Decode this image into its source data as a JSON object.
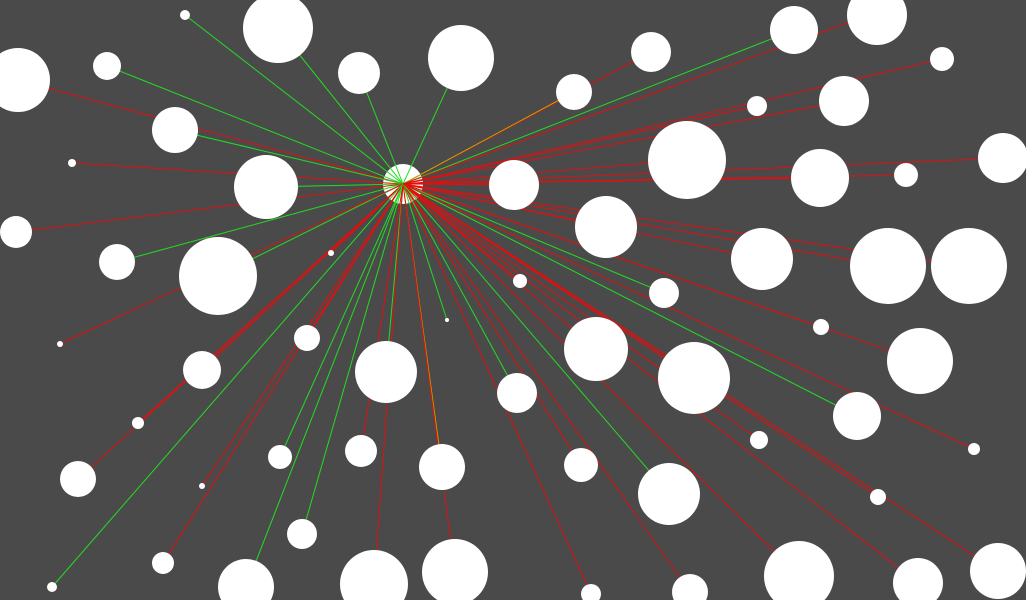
{
  "scene": {
    "description_visible": "",
    "colors": {
      "background": "#4a4a4a",
      "circle_fill": "#ffffff",
      "ray_clear": "#22dd22",
      "ray_blocked": "#e01010",
      "ray_mixed": "#c8a000"
    },
    "legend": []
  }
}
